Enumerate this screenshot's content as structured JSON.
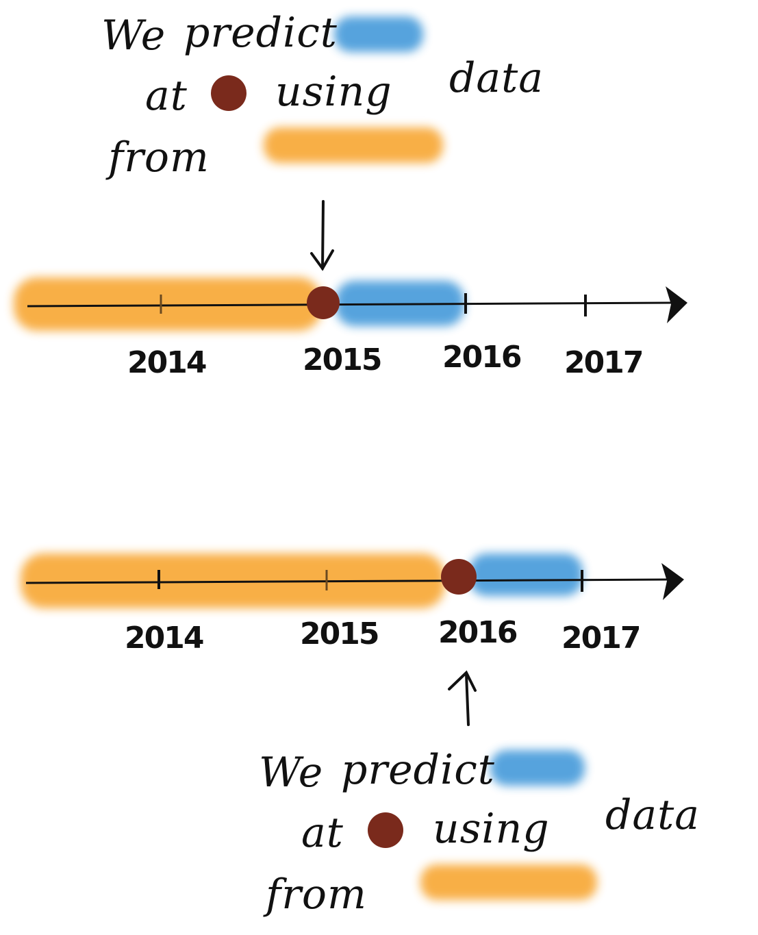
{
  "colors": {
    "past": "#F8AB3C",
    "future": "#4D9FDC",
    "now": "#7A2A1C",
    "ink": "#111111"
  },
  "panels": [
    {
      "caption": {
        "w1": "We",
        "w2": "predict",
        "w3": "at",
        "w4": "using",
        "w5": "data",
        "w6": "from"
      },
      "years": [
        "2014",
        "2015",
        "2016",
        "2017"
      ],
      "arrow_direction": "down"
    },
    {
      "caption": {
        "w1": "We",
        "w2": "predict",
        "w3": "at",
        "w4": "using",
        "w5": "data",
        "w6": "from"
      },
      "years": [
        "2014",
        "2015",
        "2016",
        "2017"
      ],
      "arrow_direction": "up"
    }
  ]
}
